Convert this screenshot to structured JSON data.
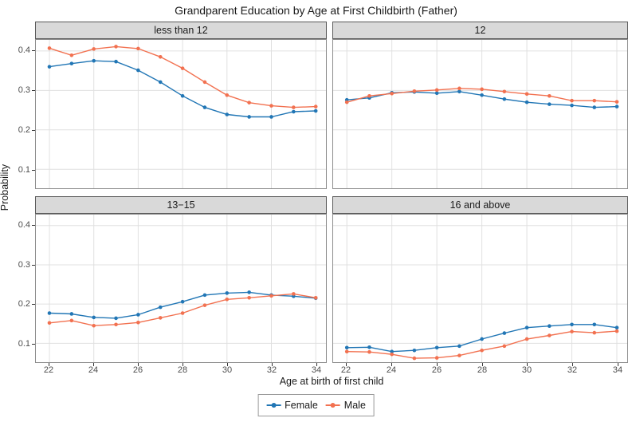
{
  "chart_data": {
    "type": "line",
    "title": "Grandparent Education by Age at First Childbirth (Father)",
    "xlabel": "Age at birth of first child",
    "ylabel": "Probability",
    "x": [
      22,
      23,
      24,
      25,
      26,
      27,
      28,
      29,
      30,
      31,
      32,
      33,
      34
    ],
    "x_ticks": [
      22,
      24,
      26,
      28,
      30,
      32,
      34
    ],
    "y_ticks": [
      0.1,
      0.2,
      0.3,
      0.4
    ],
    "xlim": [
      21.39,
      34.46
    ],
    "ylim": [
      0.052,
      0.428
    ],
    "grid": "major-only",
    "legend_position": "bottom",
    "legend": {
      "entries": [
        {
          "label": "Female",
          "color": "#2176b5"
        },
        {
          "label": "Male",
          "color": "#f27150"
        }
      ]
    },
    "facets": [
      {
        "label": "less than 12",
        "series": [
          {
            "name": "Female",
            "values": [
              0.36,
              0.368,
              0.375,
              0.373,
              0.351,
              0.321,
              0.286,
              0.257,
              0.239,
              0.233,
              0.233,
              0.246,
              0.248
            ]
          },
          {
            "name": "Male",
            "values": [
              0.407,
              0.389,
              0.405,
              0.411,
              0.406,
              0.385,
              0.356,
              0.321,
              0.288,
              0.269,
              0.261,
              0.257,
              0.259
            ]
          }
        ]
      },
      {
        "label": "12",
        "series": [
          {
            "name": "Female",
            "values": [
              0.276,
              0.281,
              0.294,
              0.296,
              0.293,
              0.297,
              0.288,
              0.278,
              0.27,
              0.265,
              0.262,
              0.257,
              0.259
            ]
          },
          {
            "name": "Male",
            "values": [
              0.27,
              0.286,
              0.292,
              0.298,
              0.301,
              0.305,
              0.303,
              0.297,
              0.291,
              0.286,
              0.274,
              0.274,
              0.271
            ]
          }
        ]
      },
      {
        "label": "13−15",
        "series": [
          {
            "name": "Female",
            "values": [
              0.177,
              0.175,
              0.166,
              0.164,
              0.173,
              0.192,
              0.206,
              0.223,
              0.228,
              0.23,
              0.223,
              0.22,
              0.215
            ]
          },
          {
            "name": "Male",
            "values": [
              0.152,
              0.158,
              0.145,
              0.148,
              0.153,
              0.165,
              0.177,
              0.197,
              0.212,
              0.216,
              0.221,
              0.226,
              0.216
            ]
          }
        ]
      },
      {
        "label": "16 and above",
        "series": [
          {
            "name": "Female",
            "values": [
              0.089,
              0.09,
              0.079,
              0.082,
              0.089,
              0.093,
              0.111,
              0.126,
              0.14,
              0.144,
              0.148,
              0.148,
              0.14
            ]
          },
          {
            "name": "Male",
            "values": [
              0.079,
              0.078,
              0.072,
              0.062,
              0.063,
              0.069,
              0.082,
              0.093,
              0.111,
              0.12,
              0.13,
              0.127,
              0.131
            ]
          }
        ]
      }
    ],
    "colors": {
      "grid": "#e0e0e0",
      "strip_bg": "#d9d9d9",
      "strip_border": "#595959",
      "panel_border": "#8c8c8c",
      "tick_text": "#4d4d4d",
      "text": "#1a1a1a"
    }
  }
}
